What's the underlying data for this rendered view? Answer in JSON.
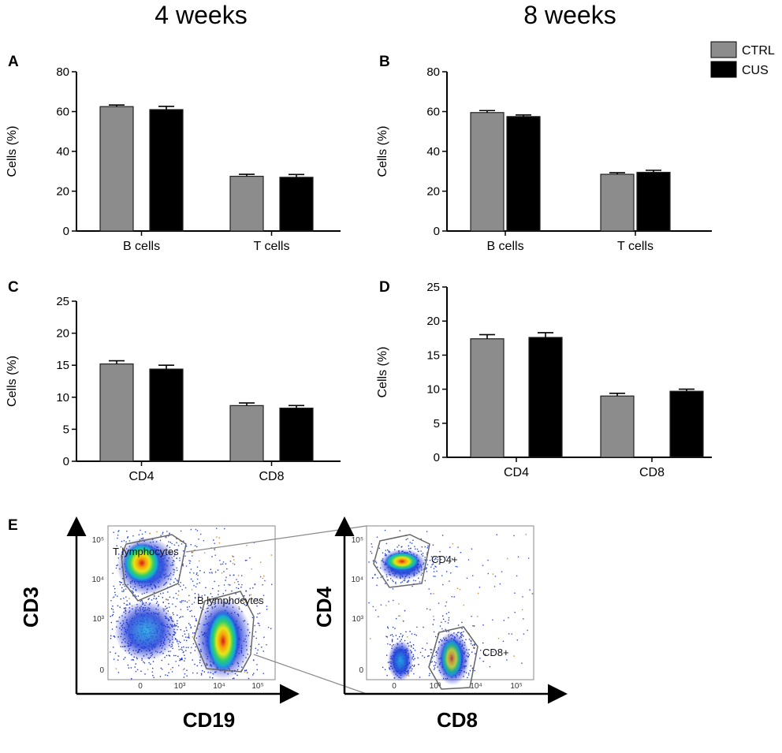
{
  "headings": {
    "left": "4 weeks",
    "right": "8 weeks"
  },
  "legend": [
    {
      "label": "CTRL",
      "color": "#8c8c8c"
    },
    {
      "label": "CUS",
      "color": "#000000"
    }
  ],
  "colors": {
    "ctrl": "#8c8c8c",
    "cus": "#000000"
  },
  "chart_data": [
    {
      "id": "A",
      "type": "bar",
      "panel_label": "A",
      "period": "4 weeks",
      "categories": [
        "B cells",
        "T cells"
      ],
      "series": [
        {
          "name": "CTRL",
          "values": [
            62.5,
            27.5
          ],
          "errors": [
            0.8,
            1.0
          ]
        },
        {
          "name": "CUS",
          "values": [
            61.0,
            27.0
          ],
          "errors": [
            1.6,
            1.4
          ]
        }
      ],
      "ylabel": "Cells (%)",
      "ylim": [
        0,
        80
      ],
      "yticks": [
        0,
        20,
        40,
        60,
        80
      ]
    },
    {
      "id": "B",
      "type": "bar",
      "panel_label": "B",
      "period": "8 weeks",
      "categories": [
        "B cells",
        "T cells"
      ],
      "series": [
        {
          "name": "CTRL",
          "values": [
            59.5,
            28.5
          ],
          "errors": [
            1.0,
            0.8
          ]
        },
        {
          "name": "CUS",
          "values": [
            57.5,
            29.5
          ],
          "errors": [
            0.8,
            1.0
          ]
        }
      ],
      "ylabel": "Cells (%)",
      "ylim": [
        0,
        80
      ],
      "yticks": [
        0,
        20,
        40,
        60,
        80
      ]
    },
    {
      "id": "C",
      "type": "bar",
      "panel_label": "C",
      "period": "4 weeks",
      "categories": [
        "CD4",
        "CD8"
      ],
      "series": [
        {
          "name": "CTRL",
          "values": [
            15.2,
            8.7
          ],
          "errors": [
            0.5,
            0.4
          ]
        },
        {
          "name": "CUS",
          "values": [
            14.4,
            8.3
          ],
          "errors": [
            0.6,
            0.4
          ]
        }
      ],
      "ylabel": "Cells (%)",
      "ylim": [
        0,
        25
      ],
      "yticks": [
        0,
        5,
        10,
        15,
        20,
        25
      ]
    },
    {
      "id": "D",
      "type": "bar",
      "panel_label": "D",
      "period": "8 weeks",
      "categories": [
        "CD4",
        "CD8"
      ],
      "series": [
        {
          "name": "CTRL",
          "values": [
            17.4,
            9.0
          ],
          "errors": [
            0.6,
            0.4
          ]
        },
        {
          "name": "CUS",
          "values": [
            17.6,
            9.7
          ],
          "errors": [
            0.7,
            0.3
          ]
        }
      ],
      "ylabel": "Cells (%)",
      "ylim": [
        0,
        25
      ],
      "yticks": [
        0,
        5,
        10,
        15,
        20,
        25
      ]
    }
  ],
  "panel_e": {
    "label": "E",
    "plot1": {
      "xlabel": "CD19",
      "ylabel": "CD3",
      "xticks": [
        "0",
        "10³",
        "10⁴",
        "10⁵"
      ],
      "yticks": [
        "10⁵",
        "10⁴",
        "10³",
        "0"
      ],
      "gates": [
        "T lymphocytes",
        "B lymphocytes"
      ]
    },
    "plot2": {
      "xlabel": "CD8",
      "ylabel": "CD4",
      "xticks": [
        "0",
        "10³",
        "10⁴",
        "10⁵"
      ],
      "yticks": [
        "10⁵",
        "10⁴",
        "10³",
        "0"
      ],
      "gates": [
        "CD4+",
        "CD8+"
      ]
    }
  }
}
